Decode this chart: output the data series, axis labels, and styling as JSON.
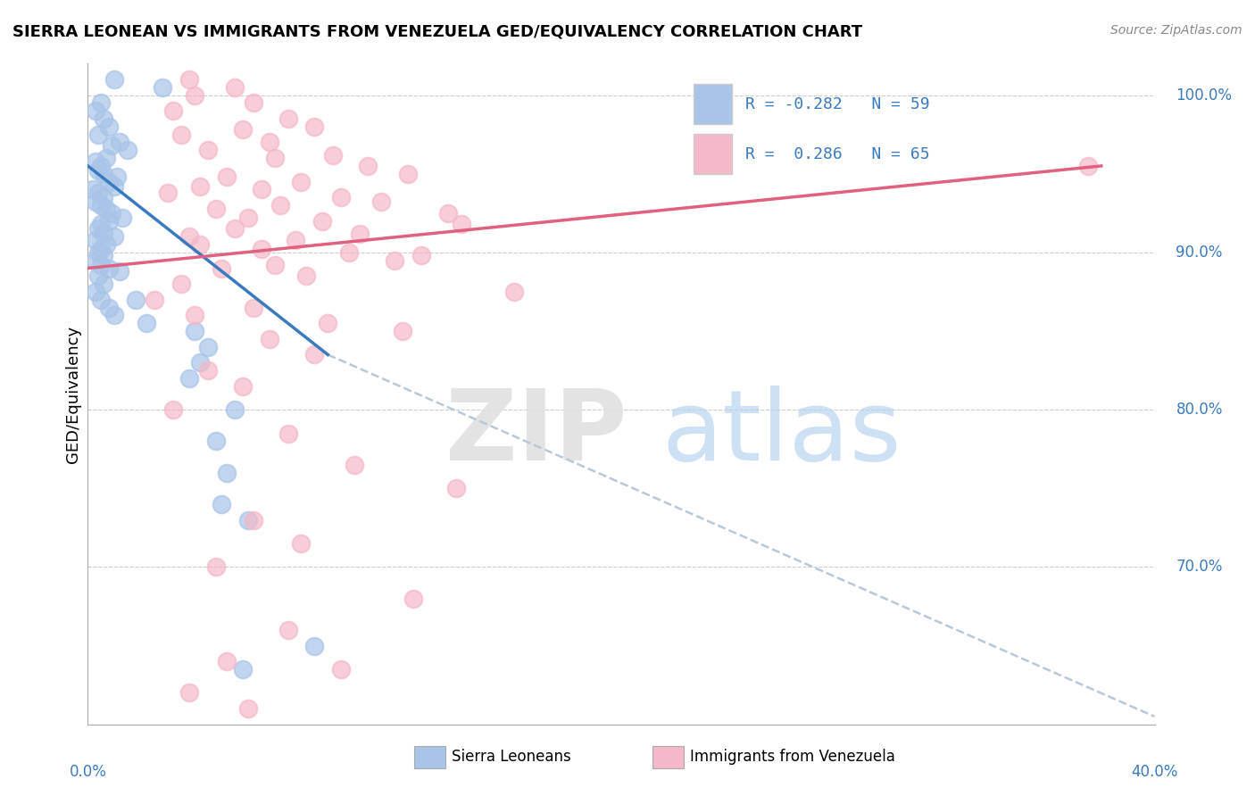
{
  "title": "SIERRA LEONEAN VS IMMIGRANTS FROM VENEZUELA GED/EQUIVALENCY CORRELATION CHART",
  "source": "Source: ZipAtlas.com",
  "ylabel": "GED/Equivalency",
  "xmin": 0.0,
  "xmax": 40.0,
  "ymin": 60.0,
  "ymax": 102.0,
  "ytick_positions": [
    60.0,
    70.0,
    80.0,
    90.0,
    100.0
  ],
  "ytick_labels": [
    "",
    "70.0%",
    "80.0%",
    "90.0%",
    "100.0%"
  ],
  "legend_blue_r": "R = -0.282",
  "legend_blue_n": "N = 59",
  "legend_pink_r": "R =  0.286",
  "legend_pink_n": "N = 65",
  "blue_color": "#a8c4e8",
  "pink_color": "#f4b8c8",
  "blue_line_color": "#3a7abf",
  "pink_line_color": "#e06080",
  "dash_line_color": "#b8c8d8",
  "legend_text_color": "#3a7abf",
  "blue_scatter_x": [
    1.0,
    2.8,
    0.5,
    0.3,
    0.6,
    0.8,
    0.4,
    1.2,
    0.9,
    1.5,
    0.7,
    0.3,
    0.5,
    0.4,
    0.6,
    1.1,
    0.8,
    1.0,
    0.2,
    0.4,
    0.6,
    0.3,
    0.5,
    0.7,
    0.9,
    1.3,
    0.8,
    0.5,
    0.4,
    0.6,
    1.0,
    0.3,
    0.7,
    0.5,
    0.4,
    0.6,
    0.3,
    0.5,
    0.8,
    1.2,
    0.4,
    0.6,
    0.3,
    0.5,
    0.8,
    1.0,
    1.8,
    2.2,
    4.0,
    4.5,
    4.2,
    3.8,
    5.5,
    4.8,
    5.2,
    5.0,
    6.0,
    8.5,
    5.8
  ],
  "blue_scatter_y": [
    101.0,
    100.5,
    99.5,
    99.0,
    98.5,
    98.0,
    97.5,
    97.0,
    96.8,
    96.5,
    96.0,
    95.8,
    95.5,
    95.2,
    95.0,
    94.8,
    94.5,
    94.2,
    94.0,
    93.8,
    93.5,
    93.2,
    93.0,
    92.8,
    92.5,
    92.2,
    92.0,
    91.8,
    91.5,
    91.2,
    91.0,
    90.8,
    90.5,
    90.2,
    90.0,
    89.8,
    89.5,
    89.2,
    89.0,
    88.8,
    88.5,
    88.0,
    87.5,
    87.0,
    86.5,
    86.0,
    87.0,
    85.5,
    85.0,
    84.0,
    83.0,
    82.0,
    80.0,
    78.0,
    76.0,
    74.0,
    73.0,
    65.0,
    63.5
  ],
  "pink_scatter_x": [
    3.8,
    5.5,
    4.0,
    6.2,
    3.2,
    7.5,
    8.5,
    5.8,
    3.5,
    6.8,
    4.5,
    9.2,
    7.0,
    10.5,
    12.0,
    5.2,
    8.0,
    4.2,
    6.5,
    3.0,
    9.5,
    11.0,
    7.2,
    4.8,
    13.5,
    6.0,
    8.8,
    14.0,
    5.5,
    10.2,
    3.8,
    7.8,
    4.2,
    6.5,
    9.8,
    12.5,
    11.5,
    7.0,
    5.0,
    8.2,
    3.5,
    16.0,
    2.5,
    6.2,
    4.0,
    9.0,
    11.8,
    6.8,
    8.5,
    4.5,
    5.8,
    3.2,
    7.5,
    10.0,
    13.8,
    6.2,
    8.0,
    4.8,
    12.2,
    7.5,
    5.2,
    9.5,
    3.8,
    6.0,
    37.5
  ],
  "pink_scatter_y": [
    101.0,
    100.5,
    100.0,
    99.5,
    99.0,
    98.5,
    98.0,
    97.8,
    97.5,
    97.0,
    96.5,
    96.2,
    96.0,
    95.5,
    95.0,
    94.8,
    94.5,
    94.2,
    94.0,
    93.8,
    93.5,
    93.2,
    93.0,
    92.8,
    92.5,
    92.2,
    92.0,
    91.8,
    91.5,
    91.2,
    91.0,
    90.8,
    90.5,
    90.2,
    90.0,
    89.8,
    89.5,
    89.2,
    89.0,
    88.5,
    88.0,
    87.5,
    87.0,
    86.5,
    86.0,
    85.5,
    85.0,
    84.5,
    83.5,
    82.5,
    81.5,
    80.0,
    78.5,
    76.5,
    75.0,
    73.0,
    71.5,
    70.0,
    68.0,
    66.0,
    64.0,
    63.5,
    62.0,
    61.0,
    95.5
  ],
  "blue_line_x": [
    0.0,
    9.0
  ],
  "blue_line_y": [
    95.5,
    83.5
  ],
  "pink_line_x": [
    0.0,
    38.0
  ],
  "pink_line_y": [
    89.0,
    95.5
  ],
  "dash_line_x": [
    9.0,
    40.0
  ],
  "dash_line_y": [
    83.5,
    60.5
  ]
}
